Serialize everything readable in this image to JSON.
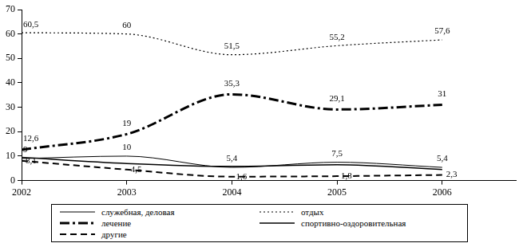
{
  "chart_data": {
    "type": "line",
    "x": [
      2002,
      2003,
      2004,
      2005,
      2006
    ],
    "xlim": [
      2002,
      2006.7
    ],
    "xticks": [
      2002,
      2003,
      2004,
      2005,
      2006
    ],
    "ylim": [
      0,
      70
    ],
    "yticks": [
      0,
      10,
      20,
      30,
      40,
      50,
      60,
      70
    ],
    "grid": false,
    "legend": "bottom",
    "series": [
      {
        "name": "служебная, деловая",
        "color": "#000000",
        "line_style": "solid",
        "marker": "none",
        "data_labels": true,
        "values": [
          9,
          10,
          5.4,
          7.5,
          5.4
        ],
        "value_labels": [
          "9",
          "10",
          "5,4",
          "7,5",
          "5,4"
        ]
      },
      {
        "name": "отдых",
        "color": "#000000",
        "line_style": "dotted",
        "marker": "none",
        "data_labels": true,
        "values": [
          60.5,
          60,
          51.5,
          55.2,
          57.6
        ],
        "value_labels": [
          "60,5",
          "60",
          "51,5",
          "55,2",
          "57,6"
        ]
      },
      {
        "name": "лечение",
        "color": "#000000",
        "line_style": "dashdot",
        "marker": "none",
        "data_labels": true,
        "values": [
          12.6,
          19,
          35.3,
          29.1,
          31
        ],
        "value_labels": [
          "12,6",
          "19",
          "35,3",
          "29,1",
          "31"
        ]
      },
      {
        "name": "спортивно-оздоровительная",
        "color": "#000000",
        "line_style": "solid",
        "marker": "none",
        "data_labels": false,
        "values": [
          9.5,
          7,
          5.8,
          6.5,
          4.5
        ]
      },
      {
        "name": "другие",
        "color": "#000000",
        "line_style": "dashed",
        "marker": "none",
        "data_labels": true,
        "values": [
          8.1,
          4.5,
          1.6,
          1.8,
          2.3
        ],
        "value_labels": [
          "8,1",
          "4,5",
          "1,6",
          "1,8",
          "2,3"
        ]
      }
    ]
  }
}
